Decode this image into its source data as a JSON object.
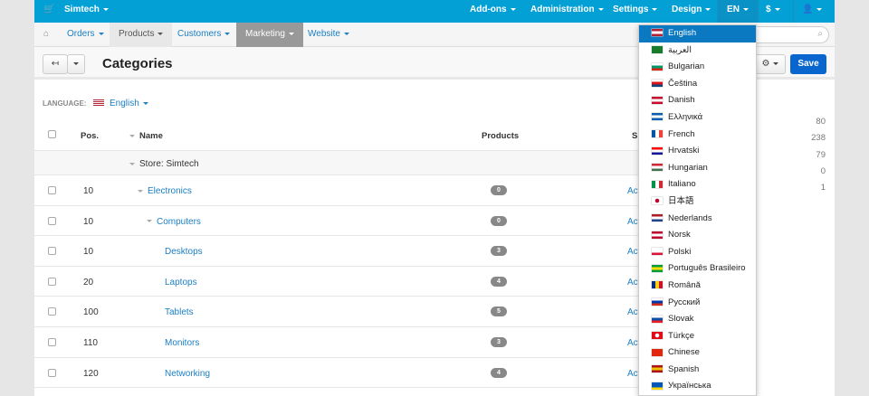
{
  "topbar": {
    "store": "Simtech",
    "items": [
      "Add-ons",
      "Administration",
      "Settings",
      "Design"
    ],
    "lang": "EN",
    "currency": "$"
  },
  "nav": {
    "items": [
      "Orders",
      "Products",
      "Customers",
      "Marketing",
      "Website"
    ]
  },
  "header": {
    "title": "Categories",
    "save": "Save"
  },
  "language": {
    "label": "LANGUAGE:",
    "value": "English"
  },
  "table": {
    "headers": {
      "pos": "Pos.",
      "name": "Name",
      "products": "Products",
      "status": "S"
    },
    "store_row": "Store: Simtech",
    "rows": [
      {
        "pos": "10",
        "name": "Electronics",
        "level": 0,
        "tree": true,
        "products": "0",
        "status": "Active"
      },
      {
        "pos": "10",
        "name": "Computers",
        "level": 1,
        "tree": true,
        "products": "0",
        "status": "Active"
      },
      {
        "pos": "10",
        "name": "Desktops",
        "level": 2,
        "tree": false,
        "products": "3",
        "status": "Active"
      },
      {
        "pos": "20",
        "name": "Laptops",
        "level": 2,
        "tree": false,
        "products": "4",
        "status": "Active"
      },
      {
        "pos": "100",
        "name": "Tablets",
        "level": 2,
        "tree": false,
        "products": "5",
        "status": "Active"
      },
      {
        "pos": "110",
        "name": "Monitors",
        "level": 2,
        "tree": false,
        "products": "3",
        "status": "Active"
      },
      {
        "pos": "120",
        "name": "Networking",
        "level": 2,
        "tree": false,
        "products": "4",
        "status": "Active"
      }
    ]
  },
  "side_stats": [
    "80",
    "238",
    "79",
    "0",
    "1"
  ],
  "languages": [
    {
      "name": "English",
      "flag": [
        "#b22234",
        "#fff",
        "#b22234"
      ],
      "active": true
    },
    {
      "name": "العربية",
      "flag": [
        "#1a7a2e",
        "#1a7a2e",
        "#1a7a2e"
      ]
    },
    {
      "name": "Bulgarian",
      "flag": [
        "#fff",
        "#00966e",
        "#d62612"
      ]
    },
    {
      "name": "Čeština",
      "flag": [
        "#fff",
        "#d7141a",
        "#11457e"
      ]
    },
    {
      "name": "Danish",
      "flag": [
        "#c60c30",
        "#fff",
        "#c60c30"
      ]
    },
    {
      "name": "Ελληνικά",
      "flag": [
        "#0d5eaf",
        "#fff",
        "#0d5eaf"
      ]
    },
    {
      "name": "French",
      "flag": [
        "#0055a4",
        "#fff",
        "#ef4135"
      ],
      "vertical": true
    },
    {
      "name": "Hrvatski",
      "flag": [
        "#ff0000",
        "#fff",
        "#171796"
      ]
    },
    {
      "name": "Hungarian",
      "flag": [
        "#ce2939",
        "#fff",
        "#477050"
      ]
    },
    {
      "name": "Italiano",
      "flag": [
        "#009246",
        "#fff",
        "#ce2b37"
      ],
      "vertical": true
    },
    {
      "name": "日本語",
      "flag": [
        "#fff",
        "#fff",
        "#fff"
      ],
      "dot": "#bc002d"
    },
    {
      "name": "Nederlands",
      "flag": [
        "#ae1c28",
        "#fff",
        "#21468b"
      ]
    },
    {
      "name": "Norsk",
      "flag": [
        "#ba0c2f",
        "#fff",
        "#ba0c2f"
      ]
    },
    {
      "name": "Polski",
      "flag": [
        "#fff",
        "#fff",
        "#dc143c"
      ]
    },
    {
      "name": "Português Brasileiro",
      "flag": [
        "#009c3b",
        "#ffdf00",
        "#009c3b"
      ]
    },
    {
      "name": "Română",
      "flag": [
        "#002b7f",
        "#fcd116",
        "#ce1126"
      ],
      "vertical": true
    },
    {
      "name": "Русский",
      "flag": [
        "#fff",
        "#0039a6",
        "#d52b1e"
      ]
    },
    {
      "name": "Slovak",
      "flag": [
        "#fff",
        "#0b4ea2",
        "#ee1c25"
      ]
    },
    {
      "name": "Türkçe",
      "flag": [
        "#e30a17",
        "#e30a17",
        "#e30a17"
      ],
      "dot": "#fff"
    },
    {
      "name": "Chinese",
      "flag": [
        "#de2910",
        "#de2910",
        "#de2910"
      ]
    },
    {
      "name": "Spanish",
      "flag": [
        "#aa151b",
        "#f1bf00",
        "#aa151b"
      ]
    },
    {
      "name": "Українська",
      "flag": [
        "#0057b7",
        "#0057b7",
        "#ffd700"
      ]
    }
  ]
}
